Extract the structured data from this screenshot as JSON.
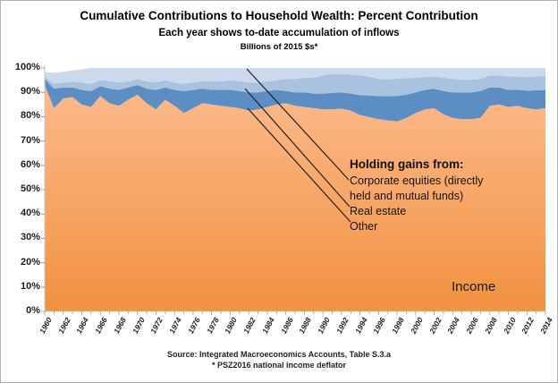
{
  "header": {
    "title": "Cumulative Contributions to Household Wealth: Percent Contribution",
    "subtitle": "Each year shows to-date accumulation of inflows",
    "units_note": "Billions of 2015 $s*"
  },
  "annotations": {
    "holding_gains_header": "Holding gains from:",
    "corporate_equities": "Corporate equities (directly held and mutual funds)",
    "real_estate": "Real estate",
    "other": "Other",
    "income": "Income"
  },
  "footer": {
    "source": "Source: Integrated Macroeconomics Accounts, Table S.3.a",
    "note": "* PSZ2016 national income deflator"
  },
  "colors": {
    "income_gradient_top": "#FCBA8C",
    "income_gradient_bottom": "#F19140",
    "other_band": "#5D8EC3",
    "real_estate_band": "#A8C2DF",
    "corporate_equities_band": "#CBD9EB",
    "axis_line": "#C6C6C6",
    "tick_mark": "#9B9B9B",
    "callout_line": "#1F1F1F"
  },
  "chart_data": {
    "type": "area",
    "stacked": true,
    "percent_scale": true,
    "title": "Cumulative Contributions to Household Wealth: Percent Contribution",
    "xlabel": "",
    "ylabel": "",
    "ylim": [
      0,
      100
    ],
    "grid": false,
    "legend_position": "in-plot callout labels",
    "x": [
      1960,
      1961,
      1962,
      1963,
      1964,
      1965,
      1966,
      1967,
      1968,
      1969,
      1970,
      1971,
      1972,
      1973,
      1974,
      1975,
      1976,
      1977,
      1978,
      1979,
      1980,
      1981,
      1982,
      1983,
      1984,
      1985,
      1986,
      1987,
      1988,
      1989,
      1990,
      1991,
      1992,
      1993,
      1994,
      1995,
      1996,
      1997,
      1998,
      1999,
      2000,
      2001,
      2002,
      2003,
      2004,
      2005,
      2006,
      2007,
      2008,
      2009,
      2010,
      2011,
      2012,
      2013,
      2014
    ],
    "x_tick_labels": [
      "1960",
      "1962",
      "1964",
      "1966",
      "1968",
      "1970",
      "1972",
      "1974",
      "1976",
      "1978",
      "1980",
      "1982",
      "1984",
      "1986",
      "1988",
      "1990",
      "1992",
      "1994",
      "1996",
      "1998",
      "2000",
      "2002",
      "2004",
      "2006",
      "2008",
      "2010",
      "2012",
      "2014"
    ],
    "y_tick_values": [
      0,
      10,
      20,
      30,
      40,
      50,
      60,
      70,
      80,
      90,
      100
    ],
    "y_tick_labels": [
      "0%",
      "10%",
      "20%",
      "30%",
      "40%",
      "50%",
      "60%",
      "70%",
      "80%",
      "90%",
      "100%"
    ],
    "series": [
      {
        "name": "Income",
        "fill": "gradient",
        "values": [
          93.0,
          83.5,
          87.5,
          88.0,
          85.0,
          84.0,
          88.5,
          85.5,
          84.5,
          87.0,
          89.0,
          85.5,
          83.0,
          87.0,
          84.5,
          81.5,
          83.5,
          85.5,
          85.0,
          84.5,
          84.0,
          83.5,
          82.5,
          83.0,
          84.0,
          85.0,
          85.5,
          84.5,
          84.0,
          83.5,
          83.0,
          83.0,
          83.3,
          82.5,
          80.7,
          79.8,
          79.0,
          78.5,
          78.0,
          79.5,
          81.5,
          83.0,
          83.5,
          81.0,
          79.5,
          79.0,
          79.0,
          79.5,
          84.5,
          85.0,
          84.0,
          84.5,
          83.5,
          83.0,
          83.5
        ]
      },
      {
        "name": "Holding gains: Other",
        "fill": "#5D8EC3",
        "values": [
          2.5,
          8.0,
          4.5,
          4.0,
          6.0,
          6.5,
          4.0,
          6.0,
          6.5,
          5.0,
          4.0,
          6.0,
          8.0,
          5.0,
          6.5,
          9.0,
          7.5,
          6.0,
          6.0,
          6.5,
          7.0,
          7.0,
          7.5,
          7.0,
          6.5,
          6.0,
          5.0,
          5.5,
          6.0,
          6.0,
          6.5,
          6.8,
          6.7,
          7.0,
          8.2,
          8.9,
          9.5,
          10.0,
          10.5,
          9.5,
          8.5,
          8.0,
          8.0,
          9.5,
          10.5,
          11.0,
          11.0,
          11.0,
          7.5,
          7.0,
          7.0,
          6.5,
          7.2,
          7.8,
          7.5
        ]
      },
      {
        "name": "Holding gains: Real estate",
        "fill": "#A8C2DF",
        "values": [
          1.0,
          2.0,
          2.0,
          2.5,
          3.0,
          3.0,
          2.5,
          3.0,
          3.0,
          2.5,
          2.5,
          3.0,
          3.0,
          3.0,
          3.0,
          3.0,
          3.0,
          3.0,
          3.5,
          3.5,
          4.0,
          4.0,
          4.0,
          4.0,
          4.0,
          4.0,
          5.0,
          5.5,
          6.0,
          6.5,
          7.5,
          7.7,
          7.5,
          7.8,
          8.1,
          7.8,
          7.0,
          6.8,
          7.1,
          6.8,
          6.0,
          5.3,
          5.0,
          5.5,
          5.5,
          5.2,
          5.2,
          5.0,
          5.0,
          5.0,
          5.5,
          5.5,
          5.6,
          5.7,
          5.8
        ]
      },
      {
        "name": "Holding gains: Corporate equities (directly held and mutual funds)",
        "fill": "#CBD9EB",
        "values": [
          1.8,
          4.5,
          4.5,
          4.5,
          5.5,
          6.5,
          5.0,
          5.5,
          6.0,
          5.5,
          4.5,
          5.5,
          6.0,
          5.0,
          6.0,
          6.5,
          6.0,
          5.5,
          5.5,
          5.5,
          5.0,
          5.5,
          6.0,
          6.0,
          5.5,
          5.0,
          4.5,
          4.5,
          4.0,
          4.0,
          3.0,
          2.5,
          2.5,
          2.7,
          3.0,
          3.5,
          4.5,
          4.7,
          4.4,
          4.2,
          4.0,
          3.7,
          3.5,
          4.0,
          4.5,
          4.8,
          4.8,
          4.5,
          3.0,
          3.0,
          3.5,
          3.5,
          3.7,
          3.5,
          3.2
        ]
      }
    ]
  }
}
